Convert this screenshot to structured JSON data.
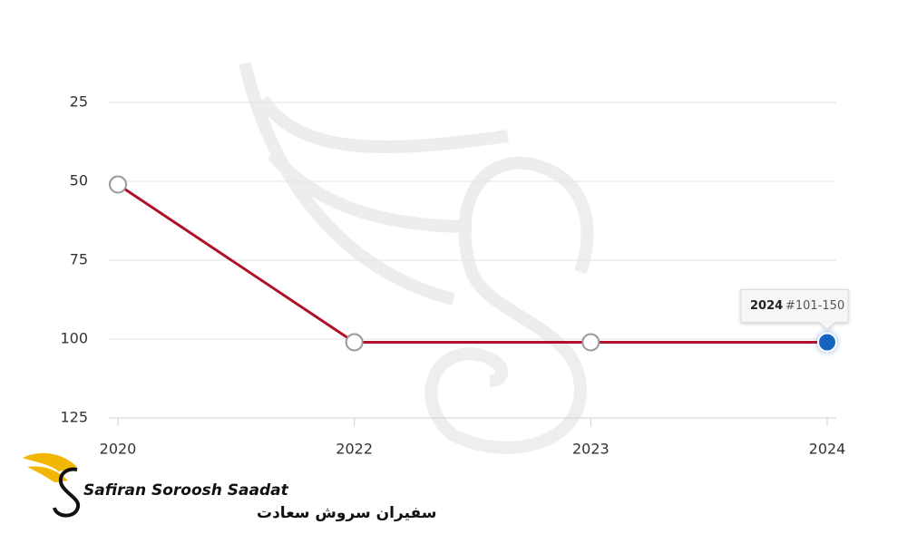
{
  "chart_data": {
    "type": "line",
    "categories": [
      "2020",
      "2022",
      "2023",
      "2024"
    ],
    "series": [
      {
        "values": [
          51,
          101,
          101,
          101
        ],
        "color": "#b01029"
      }
    ],
    "ylim": [
      25,
      125
    ],
    "yticks": [
      25,
      50,
      75,
      100,
      125
    ],
    "y_inverted": true,
    "grid": true,
    "marker_color": "#ffffff",
    "highlight_color": "#1565c0",
    "tooltip": {
      "index": 3,
      "text": "#101-150"
    }
  },
  "logo": {
    "name": "Safiran Soroosh Saadat",
    "name_fa": "سفیران سروش سعادت"
  }
}
